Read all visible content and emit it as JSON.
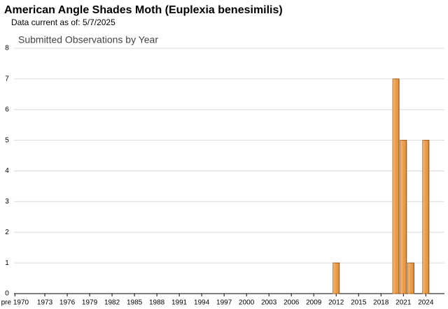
{
  "chart_data": {
    "type": "bar",
    "title": "American Angle Shades Moth   (Euplexia benesimilis)",
    "subtitle": "Data current as of: 5/7/2025",
    "chart_title": "Submitted Observations by Year",
    "categories": [
      "pre 1970",
      null,
      null,
      null,
      "1973",
      null,
      null,
      "1976",
      null,
      null,
      "1979",
      null,
      null,
      "1982",
      null,
      null,
      "1985",
      null,
      null,
      "1988",
      null,
      null,
      "1991",
      null,
      null,
      "1994",
      null,
      null,
      "1997",
      null,
      null,
      "2000",
      null,
      null,
      "2003",
      null,
      null,
      "2006",
      null,
      null,
      "2009",
      null,
      null,
      "2012",
      null,
      null,
      "2015",
      null,
      null,
      "2018",
      null,
      null,
      "2021",
      null,
      null,
      "2024",
      null,
      null
    ],
    "values": [
      0,
      0,
      0,
      0,
      0,
      0,
      0,
      0,
      0,
      0,
      0,
      0,
      0,
      0,
      0,
      0,
      0,
      0,
      0,
      0,
      0,
      0,
      0,
      0,
      0,
      0,
      0,
      0,
      0,
      0,
      0,
      0,
      0,
      0,
      0,
      0,
      0,
      0,
      0,
      0,
      0,
      0,
      0,
      1,
      0,
      0,
      0,
      0,
      0,
      0,
      0,
      7,
      5,
      1,
      0,
      5,
      0,
      0
    ],
    "color": "#eb9a45",
    "ylim": [
      0,
      8
    ],
    "yticks": [
      0,
      1,
      2,
      3,
      4,
      5,
      6,
      7,
      8
    ],
    "grid": true
  }
}
